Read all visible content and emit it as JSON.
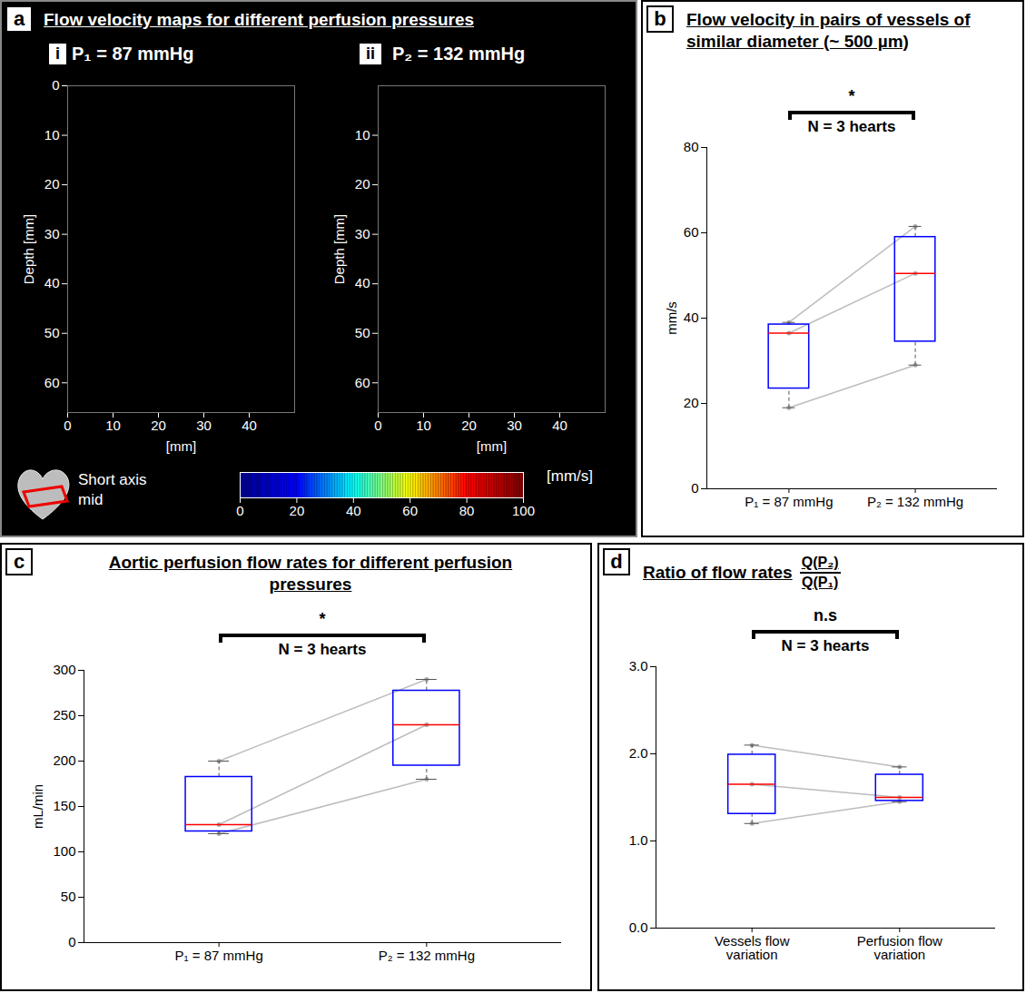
{
  "chart_data": [
    {
      "type": "image",
      "panel": "a",
      "title": "Flow velocity maps for different perfusion pressures",
      "maps": [
        {
          "label": "i",
          "subtitle": "P₁ = 87 mmHg",
          "xlabel": "[mm]",
          "ylabel": "Depth [mm]",
          "xlim": [
            0,
            50
          ],
          "ylim": [
            0,
            66
          ],
          "xticks": [
            0,
            10,
            20,
            30,
            40
          ],
          "yticks": [
            0,
            10,
            20,
            30,
            40,
            50,
            60
          ]
        },
        {
          "label": "ii",
          "subtitle": "P₂ = 132 mmHg",
          "xlabel": "[mm]",
          "ylabel": "Depth [mm]",
          "xlim": [
            0,
            50
          ],
          "ylim": [
            0,
            66
          ],
          "xticks": [
            0,
            10,
            20,
            30,
            40
          ],
          "yticks": [
            10,
            20,
            30,
            40,
            50,
            60
          ]
        }
      ],
      "colorbar": {
        "label": "[mm/s]",
        "range": [
          0,
          100
        ],
        "ticks": [
          0,
          20,
          40,
          60,
          80,
          100
        ],
        "colors": [
          "#00008f",
          "#0000ff",
          "#00ffff",
          "#ffff00",
          "#ff0000",
          "#800000"
        ]
      },
      "annotation": "Short axis mid"
    },
    {
      "type": "box",
      "panel": "b",
      "title": "Flow velocity in pairs of vessels of similar diameter (~ 500 µm)",
      "ylabel": "mm/s",
      "significance": "*",
      "annotation": "N = 3 hearts",
      "categories": [
        "P₁ = 87 mmHg",
        "P₂ = 132 mmHg"
      ],
      "values": [
        [
          19,
          36.5,
          39
        ],
        [
          29,
          50.5,
          61.5
        ]
      ],
      "q1": [
        23.5,
        34.5
      ],
      "median": [
        36.5,
        50.5
      ],
      "q3": [
        38.5,
        59
      ],
      "color": "#0000ff",
      "ylim": [
        0,
        80
      ],
      "yticks": [
        0,
        20,
        40,
        60,
        80
      ]
    },
    {
      "type": "box",
      "panel": "c",
      "title": "Aortic perfusion flow rates for different perfusion pressures",
      "ylabel": "mL/min",
      "significance": "*",
      "annotation": "N = 3 hearts",
      "categories": [
        "P₁ = 87 mmHg",
        "P₂ = 132 mmHg"
      ],
      "values": [
        [
          120,
          130,
          200
        ],
        [
          180,
          240,
          290
        ]
      ],
      "q1": [
        122.5,
        195
      ],
      "median": [
        130,
        240
      ],
      "q3": [
        182.5,
        277.5
      ],
      "color": "#0000ff",
      "ylim": [
        0,
        300
      ],
      "yticks": [
        0,
        50,
        100,
        150,
        200,
        250,
        300
      ]
    },
    {
      "type": "box",
      "panel": "d",
      "title": "Ratio of flow rates",
      "formula": {
        "numerator": "Q(P₂)",
        "denominator": "Q(P₁)"
      },
      "significance": "n.s",
      "annotation": "N = 3 hearts",
      "categories": [
        "Vessels flow variation",
        "Perfusion flow variation"
      ],
      "values": [
        [
          1.2,
          1.65,
          2.1
        ],
        [
          1.45,
          1.5,
          1.85
        ]
      ],
      "q1": [
        1.31,
        1.46
      ],
      "median": [
        1.65,
        1.5
      ],
      "q3": [
        1.99,
        1.76
      ],
      "color": "#0000ff",
      "ylim": [
        0,
        3
      ],
      "yticks": [
        0,
        1,
        2,
        3
      ]
    }
  ]
}
